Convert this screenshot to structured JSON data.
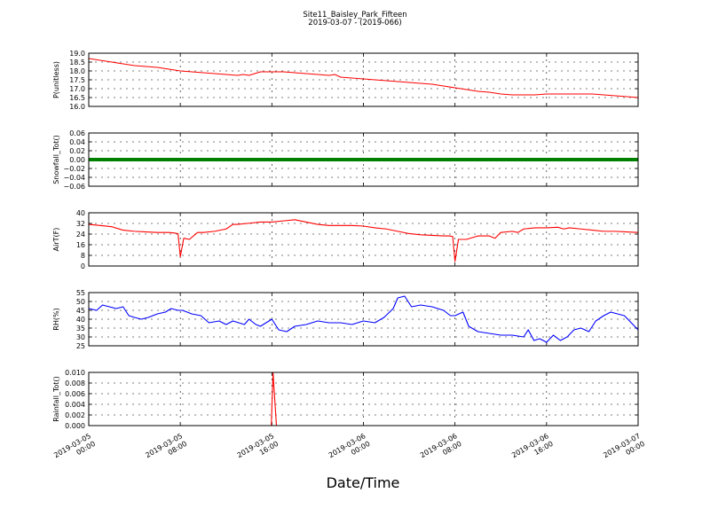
{
  "figure": {
    "title_line1": "Site11_Baisley_Park_Fifteen",
    "title_line2": "2019-03-07 - (2019-066)",
    "xlabel": "Date/Time",
    "x_ticks": [
      {
        "pos": 0,
        "line1": "2019-03-05",
        "line2": "00:00"
      },
      {
        "pos": 8,
        "line1": "2019-03-05",
        "line2": "08:00"
      },
      {
        "pos": 16,
        "line1": "2019-03-05",
        "line2": "16:00"
      },
      {
        "pos": 24,
        "line1": "2019-03-06",
        "line2": "00:00"
      },
      {
        "pos": 32,
        "line1": "2019-03-06",
        "line2": "08:00"
      },
      {
        "pos": 40,
        "line1": "2019-03-06",
        "line2": "16:00"
      },
      {
        "pos": 48,
        "line1": "2019-03-07",
        "line2": "00:00"
      }
    ]
  },
  "chart_data": [
    {
      "type": "line",
      "ylabel": "P(unitless)",
      "ylim": [
        16.0,
        19.0
      ],
      "yticks": [
        "16.0",
        "16.5",
        "17.0",
        "17.5",
        "18.0",
        "18.5",
        "19.0"
      ],
      "xlim": [
        0,
        48
      ],
      "grid": true,
      "series": [
        {
          "color": "#ff0000",
          "x": [
            0,
            1,
            2,
            3,
            4,
            5,
            6,
            7,
            8,
            9,
            10,
            11,
            12,
            13,
            13.5,
            14,
            15,
            16,
            17,
            18,
            19,
            20,
            21,
            21.5,
            22,
            23,
            24,
            25,
            26,
            27,
            28,
            29,
            30,
            31,
            32,
            33,
            34,
            35,
            36,
            37,
            38,
            39,
            40,
            41,
            42,
            43,
            44,
            45,
            46,
            47,
            48
          ],
          "y": [
            18.7,
            18.6,
            18.5,
            18.4,
            18.3,
            18.25,
            18.2,
            18.1,
            18.0,
            17.95,
            17.9,
            17.85,
            17.8,
            17.75,
            17.8,
            17.75,
            17.95,
            17.95,
            17.95,
            17.9,
            17.85,
            17.8,
            17.75,
            17.8,
            17.65,
            17.6,
            17.55,
            17.5,
            17.45,
            17.4,
            17.35,
            17.3,
            17.25,
            17.15,
            17.05,
            16.95,
            16.85,
            16.8,
            16.7,
            16.65,
            16.65,
            16.65,
            16.7,
            16.7,
            16.7,
            16.7,
            16.7,
            16.65,
            16.6,
            16.55,
            16.5
          ]
        }
      ]
    },
    {
      "type": "line",
      "ylabel": "Snowfall_Tot()",
      "ylim": [
        -0.06,
        0.06
      ],
      "yticks": [
        "−0.06",
        "−0.04",
        "−0.02",
        "0.00",
        "0.02",
        "0.04",
        "0.06"
      ],
      "xlim": [
        0,
        48
      ],
      "grid": true,
      "series": [
        {
          "color": "#008000",
          "x": [
            0,
            48
          ],
          "y": [
            0,
            0
          ]
        }
      ]
    },
    {
      "type": "line",
      "ylabel": "AirT(F)",
      "ylim": [
        -6,
        40
      ],
      "yticks": [
        "0",
        "8",
        "16",
        "24",
        "32",
        "40"
      ],
      "xlim": [
        0,
        48
      ],
      "grid": true,
      "series": [
        {
          "color": "#ff0000",
          "x": [
            0,
            1,
            2,
            3,
            4,
            5,
            6,
            7,
            7.5,
            7.8,
            8.0,
            8.3,
            8.8,
            9.5,
            10,
            11,
            12,
            12.6,
            13,
            14,
            15,
            15.5,
            16,
            17,
            18,
            19,
            20,
            21,
            22,
            23,
            24,
            25,
            26,
            27,
            28,
            29,
            30,
            31,
            31.5,
            31.8,
            32.0,
            32.3,
            33,
            34,
            35,
            35.5,
            36,
            37,
            37.5,
            38,
            39,
            40,
            41,
            41.5,
            42,
            43,
            44,
            45,
            46,
            47,
            48
          ],
          "y": [
            30,
            29,
            28,
            25,
            24,
            23.5,
            23,
            23,
            22.5,
            22,
            2,
            18,
            17,
            23,
            23,
            24,
            26,
            30,
            30,
            31,
            32,
            32,
            32,
            33,
            34,
            32,
            30,
            29,
            29,
            29,
            28.5,
            27,
            26,
            24,
            22,
            21,
            20.5,
            20,
            20,
            19.5,
            -2,
            17,
            17,
            20,
            20,
            18,
            23,
            24,
            23,
            26,
            27,
            27,
            27.5,
            26,
            27,
            26,
            25,
            24,
            24,
            23.5,
            23
          ]
        }
      ]
    },
    {
      "type": "line",
      "ylabel": "RH(%)",
      "ylim": [
        25,
        55
      ],
      "yticks": [
        "25",
        "30",
        "35",
        "40",
        "45",
        "50",
        "55"
      ],
      "xlim": [
        0,
        48
      ],
      "grid": true,
      "series": [
        {
          "color": "#0000ff",
          "x": [
            0,
            0.7,
            1.2,
            1.8,
            2.4,
            3,
            3.5,
            4,
            4.6,
            5.2,
            6,
            6.7,
            7.2,
            7.8,
            8.2,
            9,
            9.8,
            10.5,
            11.4,
            12,
            12.6,
            13.1,
            13.6,
            14,
            14.6,
            15,
            16,
            16.6,
            17.3,
            18,
            19,
            20,
            21,
            22,
            23,
            24,
            25,
            25.8,
            26.6,
            27,
            27.6,
            28.2,
            29,
            30,
            31,
            31.6,
            32,
            32.7,
            33.2,
            34,
            35,
            36,
            37,
            38,
            38.4,
            38.9,
            39.4,
            40,
            40.6,
            41.2,
            41.8,
            42.4,
            43,
            43.7,
            44.3,
            45,
            45.6,
            46.2,
            46.8,
            47.4,
            48
          ],
          "y": [
            46,
            45,
            48,
            47,
            46,
            47,
            42,
            41,
            40,
            41,
            43,
            44,
            46,
            45,
            45,
            43,
            42,
            38,
            39,
            37,
            39,
            38,
            37,
            40,
            37,
            36,
            40,
            34,
            33,
            36,
            37,
            39,
            38,
            38,
            37,
            39,
            38,
            41,
            46,
            52,
            53,
            47,
            48,
            47,
            45,
            42,
            42,
            44,
            36,
            33,
            32,
            31,
            31,
            30,
            34,
            28,
            29,
            27,
            31,
            28,
            30,
            34,
            35,
            33,
            39,
            42,
            44,
            43,
            42,
            38,
            34
          ]
        }
      ]
    },
    {
      "type": "line",
      "ylabel": "Rainfall_Tot()",
      "ylim": [
        0,
        0.01
      ],
      "yticks": [
        "0.000",
        "0.002",
        "0.004",
        "0.006",
        "0.008",
        "0.010"
      ],
      "xlim": [
        0,
        48
      ],
      "grid": true,
      "series": [
        {
          "color": "#ff0000",
          "x": [
            0,
            15.95,
            16.1,
            16.4,
            48
          ],
          "y": [
            0,
            0,
            0.01,
            0,
            0
          ]
        }
      ]
    }
  ]
}
